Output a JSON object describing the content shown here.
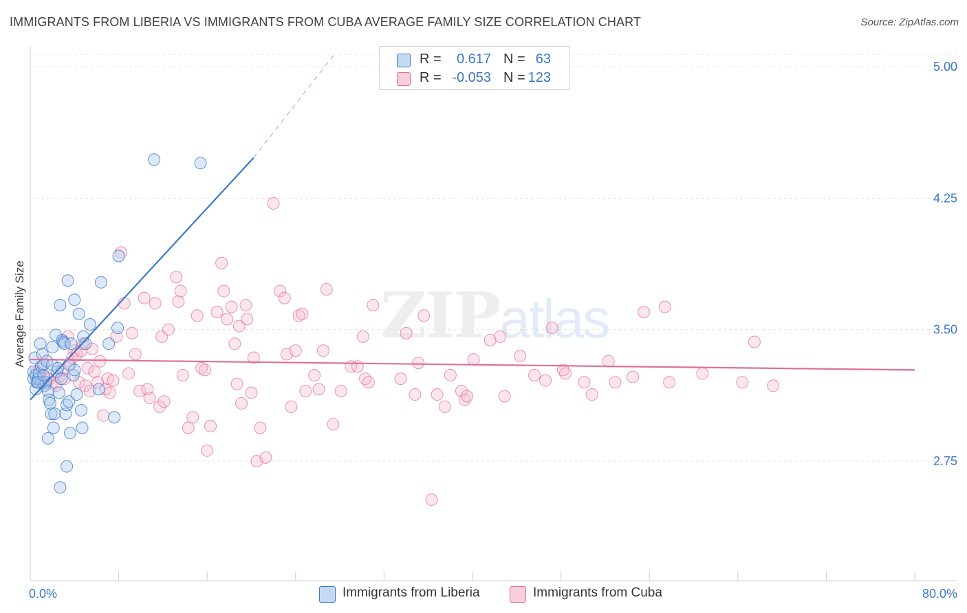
{
  "title": "IMMIGRANTS FROM LIBERIA VS IMMIGRANTS FROM CUBA AVERAGE FAMILY SIZE CORRELATION CHART",
  "source": "Source: ZipAtlas.com",
  "watermark": {
    "left": "ZIP",
    "right": "atlas"
  },
  "colors": {
    "liberia": "#3b78c9",
    "liberia_fill": "#a9c8ee",
    "cuba": "#e0709a",
    "cuba_fill": "#f5b8cd",
    "accent": "#3b78c9"
  },
  "legend": {
    "rows": [
      {
        "r_label": "R =",
        "r_value": "0.617",
        "n_label": "N =",
        "n_value": "63"
      },
      {
        "r_label": "R =",
        "r_value": "-0.053",
        "n_label": "N =",
        "n_value": "123"
      }
    ],
    "bottom": [
      "Immigrants from Liberia",
      "Immigrants from Cuba"
    ]
  },
  "chart_data": {
    "type": "scatter",
    "title": "IMMIGRANTS FROM LIBERIA VS IMMIGRANTS FROM CUBA AVERAGE FAMILY SIZE CORRELATION CHART",
    "xlabel": "",
    "ylabel": "Average Family Size",
    "xlim": [
      0,
      80
    ],
    "ylim": [
      2.0,
      5.1
    ],
    "x_tick_labels": [
      "0.0%",
      "80.0%"
    ],
    "y_ticks": [
      5.0,
      4.25,
      3.5,
      2.75
    ],
    "y_tick_labels": [
      "5.00",
      "4.25",
      "3.50",
      "2.75"
    ],
    "series": [
      {
        "name": "Immigrants from Liberia",
        "r": 0.617,
        "n": 63,
        "trend": {
          "x0": 0,
          "y0": 3.1,
          "x1": 20.2,
          "y1": 4.48,
          "dash_x1": 27.5,
          "dash_y1": 5.07
        },
        "points": [
          [
            0.3,
            3.22
          ],
          [
            0.3,
            3.26
          ],
          [
            0.4,
            3.34
          ],
          [
            0.5,
            3.16
          ],
          [
            0.5,
            3.24
          ],
          [
            0.6,
            3.2
          ],
          [
            0.7,
            3.22
          ],
          [
            0.8,
            3.25
          ],
          [
            0.9,
            3.42
          ],
          [
            1.0,
            3.29
          ],
          [
            1.0,
            3.2
          ],
          [
            1.1,
            3.36
          ],
          [
            1.2,
            3.3
          ],
          [
            1.3,
            3.18
          ],
          [
            1.4,
            3.2
          ],
          [
            1.5,
            3.32
          ],
          [
            1.6,
            3.15
          ],
          [
            1.6,
            2.88
          ],
          [
            1.7,
            3.1
          ],
          [
            1.8,
            3.08
          ],
          [
            1.9,
            3.02
          ],
          [
            2.0,
            3.3
          ],
          [
            2.1,
            2.94
          ],
          [
            2.2,
            3.02
          ],
          [
            2.3,
            3.47
          ],
          [
            2.4,
            3.26
          ],
          [
            2.5,
            3.28
          ],
          [
            2.6,
            3.14
          ],
          [
            2.7,
            3.64
          ],
          [
            2.7,
            2.6
          ],
          [
            2.8,
            3.22
          ],
          [
            2.9,
            3.44
          ],
          [
            3.0,
            3.43
          ],
          [
            3.1,
            3.42
          ],
          [
            3.2,
            3.02
          ],
          [
            3.3,
            2.72
          ],
          [
            3.3,
            3.07
          ],
          [
            3.4,
            3.78
          ],
          [
            3.5,
            3.09
          ],
          [
            3.5,
            3.3
          ],
          [
            3.6,
            2.91
          ],
          [
            3.7,
            3.42
          ],
          [
            3.9,
            3.24
          ],
          [
            4.0,
            3.67
          ],
          [
            4.0,
            3.27
          ],
          [
            4.2,
            3.13
          ],
          [
            4.4,
            3.59
          ],
          [
            4.6,
            3.04
          ],
          [
            4.7,
            2.94
          ],
          [
            4.8,
            3.46
          ],
          [
            5.0,
            3.42
          ],
          [
            5.4,
            3.53
          ],
          [
            6.2,
            3.16
          ],
          [
            6.4,
            3.77
          ],
          [
            7.1,
            3.42
          ],
          [
            7.6,
            3.0
          ],
          [
            7.9,
            3.51
          ],
          [
            8.0,
            3.92
          ],
          [
            11.2,
            4.47
          ],
          [
            15.4,
            4.45
          ],
          [
            0.7,
            3.2
          ],
          [
            1.2,
            3.24
          ],
          [
            2.0,
            3.4
          ]
        ]
      },
      {
        "name": "Immigrants from Cuba",
        "r": -0.053,
        "n": 123,
        "trend": {
          "x0": 0,
          "y0": 3.33,
          "x1": 80,
          "y1": 3.27
        },
        "points": [
          [
            0.6,
            3.26
          ],
          [
            0.7,
            3.2
          ],
          [
            0.9,
            3.28
          ],
          [
            1.0,
            3.21
          ],
          [
            1.2,
            3.24
          ],
          [
            1.4,
            3.19
          ],
          [
            1.5,
            3.22
          ],
          [
            1.7,
            3.22
          ],
          [
            2.0,
            3.2
          ],
          [
            2.3,
            3.18
          ],
          [
            2.6,
            3.23
          ],
          [
            2.9,
            3.27
          ],
          [
            3.1,
            3.22
          ],
          [
            3.4,
            3.46
          ],
          [
            3.6,
            3.3
          ],
          [
            3.8,
            3.34
          ],
          [
            4.0,
            3.38
          ],
          [
            4.2,
            3.36
          ],
          [
            4.4,
            3.2
          ],
          [
            4.6,
            3.38
          ],
          [
            4.8,
            3.42
          ],
          [
            5.0,
            3.18
          ],
          [
            5.2,
            3.28
          ],
          [
            5.4,
            3.15
          ],
          [
            5.6,
            3.39
          ],
          [
            5.8,
            3.26
          ],
          [
            6.1,
            3.2
          ],
          [
            6.3,
            3.32
          ],
          [
            6.6,
            3.01
          ],
          [
            6.8,
            3.16
          ],
          [
            7.0,
            3.22
          ],
          [
            7.2,
            3.14
          ],
          [
            7.5,
            3.21
          ],
          [
            7.8,
            3.46
          ],
          [
            8.2,
            3.94
          ],
          [
            8.5,
            3.65
          ],
          [
            8.9,
            3.25
          ],
          [
            9.2,
            3.48
          ],
          [
            9.5,
            3.36
          ],
          [
            9.9,
            3.15
          ],
          [
            10.3,
            3.68
          ],
          [
            10.6,
            3.16
          ],
          [
            10.8,
            3.11
          ],
          [
            11.3,
            3.65
          ],
          [
            11.7,
            3.06
          ],
          [
            11.9,
            3.46
          ],
          [
            12.1,
            3.09
          ],
          [
            12.5,
            3.5
          ],
          [
            13.2,
            3.8
          ],
          [
            13.4,
            3.66
          ],
          [
            13.6,
            3.72
          ],
          [
            13.8,
            3.24
          ],
          [
            14.3,
            2.94
          ],
          [
            14.7,
            3.0
          ],
          [
            15.1,
            3.58
          ],
          [
            15.5,
            3.28
          ],
          [
            15.8,
            3.27
          ],
          [
            16.0,
            2.81
          ],
          [
            16.3,
            2.95
          ],
          [
            16.9,
            3.6
          ],
          [
            17.3,
            3.88
          ],
          [
            17.5,
            3.72
          ],
          [
            17.8,
            3.56
          ],
          [
            18.2,
            3.63
          ],
          [
            18.5,
            3.42
          ],
          [
            18.7,
            3.19
          ],
          [
            18.9,
            3.52
          ],
          [
            19.1,
            3.08
          ],
          [
            19.5,
            3.64
          ],
          [
            19.6,
            3.56
          ],
          [
            20.0,
            3.14
          ],
          [
            20.2,
            3.34
          ],
          [
            20.5,
            2.75
          ],
          [
            20.8,
            2.94
          ],
          [
            21.3,
            2.77
          ],
          [
            22.0,
            4.22
          ],
          [
            22.6,
            3.72
          ],
          [
            23.0,
            3.68
          ],
          [
            23.2,
            3.36
          ],
          [
            23.6,
            3.06
          ],
          [
            24.0,
            3.38
          ],
          [
            24.3,
            3.58
          ],
          [
            24.6,
            3.59
          ],
          [
            24.9,
            3.15
          ],
          [
            25.7,
            3.24
          ],
          [
            26.1,
            3.16
          ],
          [
            26.5,
            3.38
          ],
          [
            26.8,
            3.73
          ],
          [
            27.4,
            2.96
          ],
          [
            28.1,
            3.15
          ],
          [
            29.0,
            3.29
          ],
          [
            29.6,
            3.29
          ],
          [
            30.1,
            3.46
          ],
          [
            30.3,
            3.22
          ],
          [
            30.6,
            3.2
          ],
          [
            31.0,
            3.64
          ],
          [
            33.5,
            3.22
          ],
          [
            34.0,
            3.48
          ],
          [
            34.8,
            3.13
          ],
          [
            35.1,
            3.31
          ],
          [
            35.6,
            3.58
          ],
          [
            36.3,
            2.53
          ],
          [
            36.8,
            3.13
          ],
          [
            37.5,
            3.06
          ],
          [
            38.0,
            3.24
          ],
          [
            39.0,
            3.15
          ],
          [
            39.3,
            3.1
          ],
          [
            39.5,
            3.12
          ],
          [
            40.1,
            3.33
          ],
          [
            41.6,
            3.44
          ],
          [
            42.5,
            3.46
          ],
          [
            42.9,
            3.12
          ],
          [
            44.3,
            3.35
          ],
          [
            45.6,
            3.24
          ],
          [
            46.6,
            3.21
          ],
          [
            47.2,
            3.51
          ],
          [
            48.2,
            3.27
          ],
          [
            48.4,
            3.25
          ],
          [
            50.1,
            3.2
          ],
          [
            50.8,
            3.13
          ],
          [
            52.3,
            3.32
          ],
          [
            52.9,
            3.2
          ],
          [
            54.5,
            3.23
          ],
          [
            55.5,
            3.6
          ],
          [
            57.4,
            3.63
          ],
          [
            57.8,
            3.2
          ],
          [
            60.8,
            3.25
          ],
          [
            64.4,
            3.2
          ],
          [
            65.5,
            3.43
          ],
          [
            67.2,
            3.18
          ]
        ]
      }
    ]
  }
}
